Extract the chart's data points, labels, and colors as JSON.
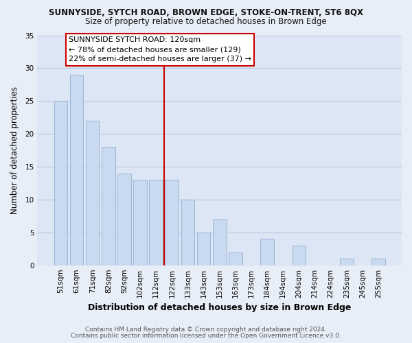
{
  "title_line1": "SUNNYSIDE, SYTCH ROAD, BROWN EDGE, STOKE-ON-TRENT, ST6 8QX",
  "title_line2": "Size of property relative to detached houses in Brown Edge",
  "xlabel": "Distribution of detached houses by size in Brown Edge",
  "ylabel": "Number of detached properties",
  "bar_labels": [
    "51sqm",
    "61sqm",
    "71sqm",
    "82sqm",
    "92sqm",
    "102sqm",
    "112sqm",
    "122sqm",
    "133sqm",
    "143sqm",
    "153sqm",
    "163sqm",
    "173sqm",
    "184sqm",
    "194sqm",
    "204sqm",
    "214sqm",
    "224sqm",
    "235sqm",
    "245sqm",
    "255sqm"
  ],
  "bar_values": [
    25,
    29,
    22,
    18,
    14,
    13,
    13,
    13,
    10,
    5,
    7,
    2,
    0,
    4,
    0,
    3,
    0,
    0,
    1,
    0,
    1
  ],
  "bar_color": "#c9d9ef",
  "bar_edge_color": "#9ab5d5",
  "vline_index": 7,
  "vline_color": "#cc0000",
  "ylim": [
    0,
    35
  ],
  "yticks": [
    0,
    5,
    10,
    15,
    20,
    25,
    30,
    35
  ],
  "annotation_title": "SUNNYSIDE SYTCH ROAD: 120sqm",
  "annotation_line1": "← 78% of detached houses are smaller (129)",
  "annotation_line2": "22% of semi-detached houses are larger (37) →",
  "annotation_box_color": "#ffffff",
  "annotation_box_edge": "#cc0000",
  "footer_line1": "Contains HM Land Registry data © Crown copyright and database right 2024.",
  "footer_line2": "Contains public sector information licensed under the Open Government Licence v3.0.",
  "bg_color": "#e8eef7",
  "plot_bg_color": "#dce6f5",
  "grid_color": "#b8c8de",
  "title1_fontsize": 8.5,
  "title2_fontsize": 8.5,
  "xlabel_fontsize": 9,
  "ylabel_fontsize": 8.5,
  "tick_fontsize": 7.5,
  "footer_fontsize": 6.5,
  "ann_fontsize": 8
}
